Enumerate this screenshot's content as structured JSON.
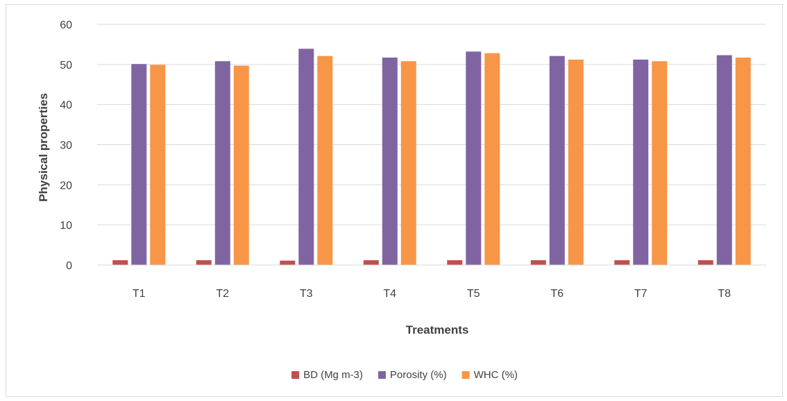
{
  "chart_data": {
    "type": "bar",
    "title": "",
    "xlabel": "Treatments",
    "ylabel": "Physical properties",
    "categories": [
      "T1",
      "T2",
      "T3",
      "T4",
      "T5",
      "T6",
      "T7",
      "T8"
    ],
    "ylim": [
      0,
      60
    ],
    "yticks": [
      0,
      10,
      20,
      30,
      40,
      50,
      60
    ],
    "grid": true,
    "legend_position": "bottom",
    "series": [
      {
        "name": "BD (Mg m-3)",
        "color": "#c0504d",
        "values": [
          1.2,
          1.2,
          1.1,
          1.2,
          1.2,
          1.2,
          1.2,
          1.2
        ]
      },
      {
        "name": "Porosity (%)",
        "color": "#8064a2",
        "values": [
          50.1,
          50.8,
          53.9,
          51.7,
          53.2,
          52.1,
          51.2,
          52.3
        ]
      },
      {
        "name": "WHC (%)",
        "color": "#f79646",
        "values": [
          49.9,
          49.7,
          52.1,
          50.8,
          52.8,
          51.2,
          50.8,
          51.7
        ]
      }
    ]
  }
}
